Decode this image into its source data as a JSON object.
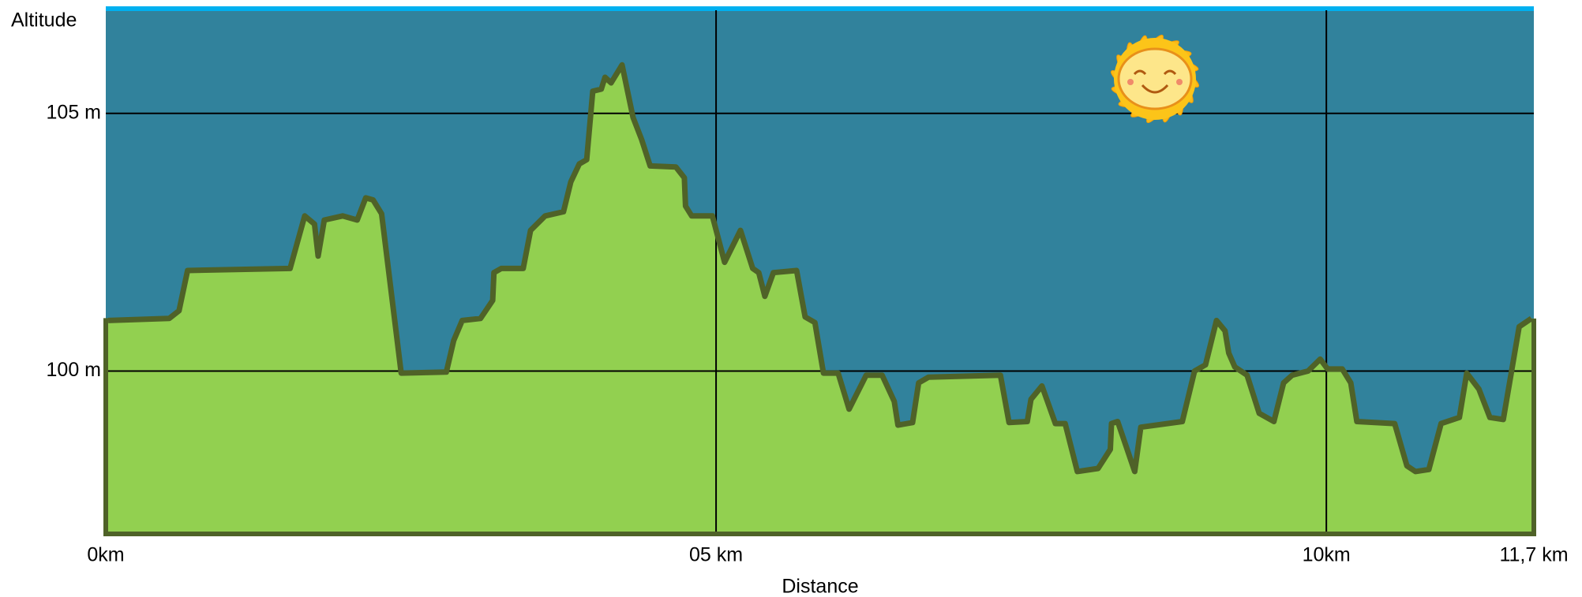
{
  "chart_data": {
    "type": "area",
    "y_label": "Altitude",
    "x_label": "Distance",
    "xlim": [
      0,
      11.7
    ],
    "ylim": [
      96.84,
      107
    ],
    "xticks": [
      {
        "value": 0,
        "label": "0km"
      },
      {
        "value": 5,
        "label": "05 km"
      },
      {
        "value": 10,
        "label": "10km"
      },
      {
        "value": 11.7,
        "label": "11,7 km"
      }
    ],
    "yticks": [
      {
        "value": 100,
        "label": "100 m"
      },
      {
        "value": 105,
        "label": "105 m"
      }
    ],
    "grid": true,
    "color": "#92d050",
    "line_color": "#4f6228",
    "background": "#31829c",
    "x": [
      0.02,
      0.52,
      0.6,
      0.67,
      1.51,
      1.63,
      1.71,
      1.74,
      1.79,
      1.94,
      2.06,
      2.13,
      2.19,
      2.26,
      2.42,
      2.79,
      2.85,
      2.92,
      3.07,
      3.17,
      3.18,
      3.24,
      3.42,
      3.48,
      3.6,
      3.75,
      3.81,
      3.88,
      3.94,
      3.99,
      4.06,
      4.09,
      4.14,
      4.23,
      4.32,
      4.39,
      4.46,
      4.67,
      4.74,
      4.75,
      4.8,
      4.97,
      5.07,
      5.2,
      5.3,
      5.35,
      5.4,
      5.47,
      5.66,
      5.73,
      5.81,
      5.88,
      6.0,
      6.09,
      6.23,
      6.36,
      6.46,
      6.49,
      6.61,
      6.66,
      6.74,
      7.33,
      7.4,
      7.55,
      7.58,
      7.67,
      7.78,
      7.86,
      7.96,
      8.13,
      8.23,
      8.24,
      8.29,
      8.43,
      8.48,
      8.82,
      8.92,
      9.01,
      9.1,
      9.17,
      9.2,
      9.25,
      9.35,
      9.45,
      9.57,
      9.65,
      9.72,
      9.85,
      9.95,
      10.01,
      10.13,
      10.2,
      10.25,
      10.56,
      10.66,
      10.73,
      10.84,
      10.94,
      11.09,
      11.15,
      11.25,
      11.34,
      11.45,
      11.58,
      11.68
    ],
    "values": [
      100.98,
      101.02,
      101.17,
      101.95,
      101.99,
      103.01,
      102.85,
      102.23,
      102.93,
      103.01,
      102.93,
      103.36,
      103.32,
      103.05,
      99.96,
      99.98,
      100.59,
      100.98,
      101.02,
      101.37,
      101.91,
      101.99,
      101.99,
      102.73,
      103.01,
      103.09,
      103.67,
      104.02,
      104.1,
      105.43,
      105.47,
      105.7,
      105.59,
      105.94,
      104.92,
      104.49,
      103.98,
      103.96,
      103.75,
      103.2,
      103.01,
      103.01,
      102.11,
      102.73,
      101.99,
      101.91,
      101.45,
      101.91,
      101.95,
      101.05,
      100.94,
      99.96,
      99.96,
      99.26,
      99.92,
      99.92,
      99.41,
      98.95,
      99.0,
      99.77,
      99.88,
      99.92,
      99.0,
      99.02,
      99.45,
      99.71,
      98.98,
      98.98,
      98.05,
      98.11,
      98.48,
      98.98,
      99.02,
      98.05,
      98.91,
      99.02,
      100.0,
      100.12,
      100.98,
      100.78,
      100.35,
      100.08,
      99.92,
      99.18,
      99.02,
      99.77,
      99.92,
      100.0,
      100.23,
      100.04,
      100.04,
      99.77,
      99.02,
      98.98,
      98.16,
      98.05,
      98.09,
      98.98,
      99.1,
      99.96,
      99.65,
      99.1,
      99.06,
      100.86,
      101.02
    ]
  }
}
